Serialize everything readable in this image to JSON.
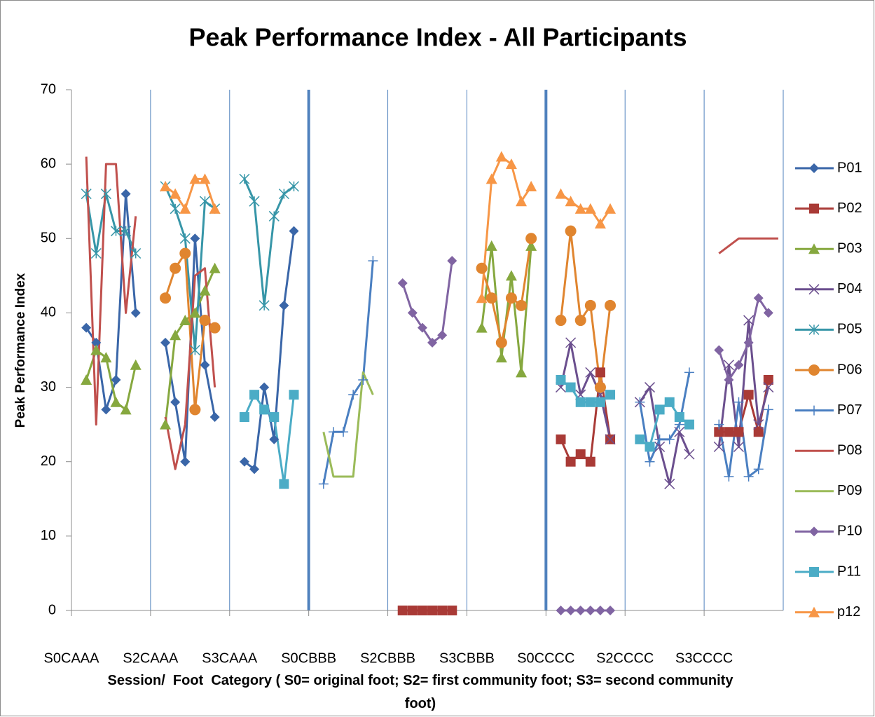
{
  "chart_data": {
    "type": "line",
    "title": "Peak Performance Index - All Participants",
    "y_label": "Peak Performance Index",
    "x_label": "Session/  Foot  Category ( S0= original foot; S2= first community foot; S3= second community foot)",
    "xlim": [
      0,
      72
    ],
    "xticks": [
      {
        "value": 0,
        "label": "S0CAAA"
      },
      {
        "value": 8,
        "label": "S2CAAA"
      },
      {
        "value": 16,
        "label": "S3CAAA"
      },
      {
        "value": 24,
        "label": "S0CBBB"
      },
      {
        "value": 32,
        "label": "S2CBBB"
      },
      {
        "value": 40,
        "label": "S3CBBB"
      },
      {
        "value": 48,
        "label": "S0CCCC"
      },
      {
        "value": 56,
        "label": "S2CCCC"
      },
      {
        "value": 64,
        "label": "S3CCCC"
      }
    ],
    "separators": [
      24,
      48
    ],
    "ylim": [
      0,
      70
    ],
    "yticks": [
      0,
      10,
      20,
      30,
      40,
      50,
      60,
      70
    ],
    "grid": "x",
    "legend": "right",
    "series": [
      {
        "name": "P01",
        "color": "#3A66A8",
        "marker": "diamond",
        "x": [
          1.5,
          2.5,
          3.5,
          4.5,
          5.5,
          6.5,
          null,
          9.5,
          10.5,
          11.5,
          12.5,
          13.5,
          14.5,
          null,
          17.5,
          18.5,
          19.5,
          20.5,
          21.5,
          22.5
        ],
        "values": [
          38,
          36,
          27,
          31,
          56,
          40,
          null,
          36,
          28,
          20,
          50,
          33,
          26,
          null,
          20,
          19,
          30,
          23,
          41,
          51
        ]
      },
      {
        "name": "P02",
        "color": "#A93A36",
        "marker": "square",
        "x": [
          33.5,
          34.5,
          35.5,
          36.5,
          37.5,
          38.5,
          null,
          49.5,
          50.5,
          51.5,
          52.5,
          53.5,
          54.5,
          null,
          65.5,
          66.5,
          67.5,
          68.5,
          69.5,
          70.5
        ],
        "values": [
          0,
          0,
          0,
          0,
          0,
          0,
          null,
          23,
          20,
          21,
          20,
          32,
          23,
          null,
          24,
          24,
          24,
          29,
          24,
          31
        ]
      },
      {
        "name": "P03",
        "color": "#86A83F",
        "marker": "triangle",
        "x": [
          1.5,
          2.5,
          3.5,
          4.5,
          5.5,
          6.5,
          null,
          9.5,
          10.5,
          11.5,
          12.5,
          13.5,
          14.5,
          null,
          41.5,
          42.5,
          43.5,
          44.5,
          45.5,
          46.5
        ],
        "values": [
          31,
          35,
          34,
          28,
          27,
          33,
          null,
          25,
          37,
          39,
          40,
          43,
          46,
          null,
          38,
          49,
          34,
          45,
          32,
          49
        ]
      },
      {
        "name": "P04",
        "color": "#6B4F8E",
        "marker": "x",
        "x": [
          49.5,
          50.5,
          51.5,
          52.5,
          53.5,
          54.5,
          null,
          57.5,
          58.5,
          59.5,
          60.5,
          61.5,
          62.5,
          null,
          65.5,
          66.5,
          67.5,
          68.5,
          69.5,
          70.5
        ],
        "values": [
          30,
          36,
          29,
          32,
          29,
          23,
          null,
          28,
          30,
          22,
          17,
          24,
          21,
          null,
          22,
          33,
          22,
          39,
          25,
          30
        ]
      },
      {
        "name": "P05",
        "color": "#3796A8",
        "marker": "asterisk",
        "x": [
          1.5,
          2.5,
          3.5,
          4.5,
          5.5,
          6.5,
          null,
          9.5,
          10.5,
          11.5,
          12.5,
          13.5,
          14.5,
          null,
          17.5,
          18.5,
          19.5,
          20.5,
          21.5,
          22.5
        ],
        "values": [
          56,
          48,
          56,
          51,
          51,
          48,
          null,
          57,
          54,
          50,
          35,
          55,
          54,
          null,
          58,
          55,
          41,
          53,
          56,
          57
        ]
      },
      {
        "name": "P06",
        "color": "#E0852F",
        "marker": "circle",
        "x": [
          9.5,
          10.5,
          11.5,
          12.5,
          13.5,
          14.5,
          null,
          41.5,
          42.5,
          43.5,
          44.5,
          45.5,
          46.5,
          null,
          49.5,
          50.5,
          51.5,
          52.5,
          53.5,
          54.5
        ],
        "values": [
          42,
          46,
          48,
          27,
          39,
          38,
          null,
          46,
          42,
          36,
          42,
          41,
          50,
          null,
          39,
          51,
          39,
          41,
          30,
          41
        ]
      },
      {
        "name": "P07",
        "color": "#4A7FC1",
        "marker": "plus",
        "x": [
          25.5,
          26.5,
          27.5,
          28.5,
          29.5,
          30.5,
          null,
          57.5,
          58.5,
          59.5,
          60.5,
          61.5,
          62.5,
          null,
          65.5,
          66.5,
          67.5,
          68.5,
          69.5,
          70.5
        ],
        "values": [
          17,
          24,
          24,
          29,
          31,
          47,
          null,
          28,
          20,
          23,
          23,
          25,
          32,
          null,
          25,
          18,
          28,
          18,
          19,
          27
        ]
      },
      {
        "name": "P08",
        "color": "#C0504D",
        "marker": "none",
        "x": [
          1.5,
          2.5,
          3.5,
          4.5,
          5.5,
          6.5,
          null,
          9.5,
          10.5,
          11.5,
          12.5,
          13.5,
          14.5,
          null,
          65.5,
          66.5,
          67.5,
          68.5,
          69.5,
          70.5,
          71.5
        ],
        "values": [
          61,
          25,
          60,
          60,
          40,
          53,
          null,
          26,
          19,
          25,
          45,
          46,
          30,
          null,
          48,
          49,
          50,
          50,
          50,
          50,
          50
        ]
      },
      {
        "name": "P09",
        "color": "#9BBB59",
        "marker": "none",
        "x": [
          25.5,
          26.5,
          27.5,
          28.5,
          29.5,
          30.5
        ],
        "values": [
          24,
          18,
          18,
          18,
          32,
          29
        ]
      },
      {
        "name": "P10",
        "color": "#8064A2",
        "marker": "diamond",
        "x": [
          33.5,
          34.5,
          35.5,
          36.5,
          37.5,
          38.5,
          null,
          49.5,
          50.5,
          51.5,
          52.5,
          53.5,
          54.5,
          null,
          65.5,
          66.5,
          67.5,
          68.5,
          69.5,
          70.5
        ],
        "values": [
          44,
          40,
          38,
          36,
          37,
          47,
          null,
          0,
          0,
          0,
          0,
          0,
          0,
          null,
          35,
          31,
          33,
          36,
          42,
          40
        ]
      },
      {
        "name": "P11",
        "color": "#4BACC6",
        "marker": "square",
        "x": [
          17.5,
          18.5,
          19.5,
          20.5,
          21.5,
          22.5,
          null,
          49.5,
          50.5,
          51.5,
          52.5,
          53.5,
          54.5,
          null,
          57.5,
          58.5,
          59.5,
          60.5,
          61.5,
          62.5
        ],
        "values": [
          26,
          29,
          27,
          26,
          17,
          29,
          null,
          31,
          30,
          28,
          28,
          28,
          29,
          null,
          23,
          22,
          27,
          28,
          26,
          25
        ]
      },
      {
        "name": "p12",
        "color": "#F79646",
        "marker": "triangle",
        "x": [
          9.5,
          10.5,
          11.5,
          12.5,
          13.5,
          14.5,
          null,
          41.5,
          42.5,
          43.5,
          44.5,
          45.5,
          46.5,
          null,
          49.5,
          50.5,
          51.5,
          52.5,
          53.5,
          54.5
        ],
        "values": [
          57,
          56,
          54,
          58,
          58,
          54,
          null,
          42,
          58,
          61,
          60,
          55,
          57,
          null,
          56,
          55,
          54,
          54,
          52,
          54
        ]
      }
    ]
  }
}
